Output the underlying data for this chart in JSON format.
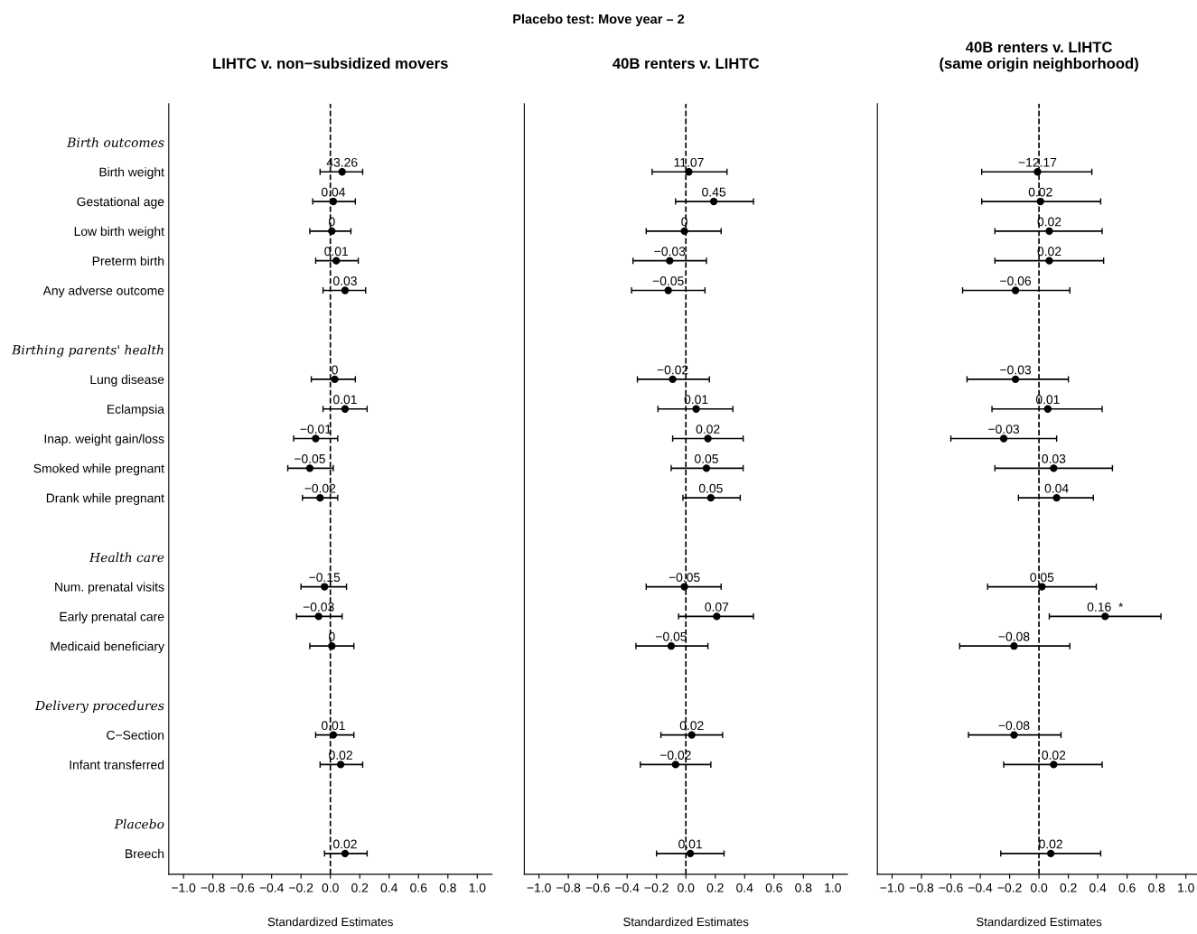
{
  "chart_data": [
    {
      "type": "scatter",
      "orientation": "horizontal",
      "title": "LIHTC v. non−subsidized movers",
      "xlabel": "Standardized Estimates",
      "categories": [
        "Birth outcomes",
        "Birth weight",
        "Gestational age",
        "Low birth weight",
        "Preterm birth",
        "Any adverse outcome",
        null,
        "Birthing parents' health",
        "Lung disease",
        "Eclampsia",
        "Inap. weight gain/loss",
        "Smoked while pregnant",
        "Drank while pregnant",
        null,
        "Health care",
        "Num. prenatal visits",
        "Early prenatal care",
        "Medicaid beneficiary",
        null,
        "Delivery procedures",
        "C−Section",
        "Infant transferred",
        null,
        "Placebo",
        "Breech"
      ],
      "series": [
        {
          "color": "#000000",
          "values": [
            null,
            0.08,
            0.02,
            0.01,
            0.04,
            0.1,
            null,
            null,
            0.03,
            0.1,
            -0.1,
            -0.14,
            -0.07,
            null,
            null,
            -0.04,
            -0.08,
            0.01,
            null,
            null,
            0.02,
            0.07,
            null,
            null,
            0.1
          ],
          "errors": [
            null,
            [
              -0.07,
              0.22
            ],
            [
              -0.12,
              0.17
            ],
            [
              -0.14,
              0.14
            ],
            [
              -0.1,
              0.19
            ],
            [
              -0.05,
              0.24
            ],
            null,
            null,
            [
              -0.13,
              0.17
            ],
            [
              -0.05,
              0.25
            ],
            [
              -0.25,
              0.05
            ],
            [
              -0.29,
              0.02
            ],
            [
              -0.19,
              0.05
            ],
            null,
            null,
            [
              -0.2,
              0.11
            ],
            [
              -0.23,
              0.08
            ],
            [
              -0.14,
              0.16
            ],
            null,
            null,
            [
              -0.1,
              0.16
            ],
            [
              -0.07,
              0.22
            ],
            null,
            null,
            [
              -0.04,
              0.25
            ]
          ]
        }
      ],
      "annotations": [
        "Placebo test: Move year – 2",
        {
          "text": "43.26",
          "x": 0.08,
          "y": "Birth weight"
        },
        {
          "text": "0.04",
          "x": 0.02,
          "y": "Gestational age"
        },
        {
          "text": "0",
          "x": 0.01,
          "y": "Low birth weight"
        },
        {
          "text": "0.01",
          "x": 0.04,
          "y": "Preterm birth"
        },
        {
          "text": "0.03",
          "x": 0.1,
          "y": "Any adverse outcome"
        },
        {
          "text": "0",
          "x": 0.03,
          "y": "Lung disease"
        },
        {
          "text": "0.01",
          "x": 0.1,
          "y": "Eclampsia"
        },
        {
          "text": "−0.01",
          "x": -0.1,
          "y": "Inap. weight gain/loss"
        },
        {
          "text": "−0.05",
          "x": -0.14,
          "y": "Smoked while pregnant"
        },
        {
          "text": "−0.02",
          "x": -0.07,
          "y": "Drank while pregnant"
        },
        {
          "text": "−0.15",
          "x": -0.04,
          "y": "Num. prenatal visits"
        },
        {
          "text": "−0.03",
          "x": -0.08,
          "y": "Early prenatal care"
        },
        {
          "text": "0",
          "x": 0.01,
          "y": "Medicaid beneficiary"
        },
        {
          "text": "0.01",
          "x": 0.02,
          "y": "C−Section"
        },
        {
          "text": "0.02",
          "x": 0.07,
          "y": "Infant transferred"
        },
        {
          "text": "0.02",
          "x": 0.1,
          "y": "Breech"
        }
      ],
      "xlim": [
        -1.1,
        1.1
      ],
      "xticks": [
        {
          "value": -1.0,
          "label": "−1.0"
        },
        {
          "value": -0.8,
          "label": "−0.8"
        },
        {
          "value": -0.6,
          "label": "−0.6"
        },
        {
          "value": -0.4,
          "label": "−0.4"
        },
        {
          "value": -0.2,
          "label": "−0.2"
        },
        {
          "value": 0.0,
          "label": "0.0"
        },
        {
          "value": 0.2,
          "label": "0.2"
        },
        {
          "value": 0.4,
          "label": "0.4"
        },
        {
          "value": 0.6,
          "label": "0.6"
        },
        {
          "value": 0.8,
          "label": "0.8"
        },
        {
          "value": 1.0,
          "label": "1.0"
        }
      ],
      "ref_lines": [
        {
          "axis": "x",
          "value": 0,
          "line_style": "dashed",
          "color": "#000000"
        }
      ],
      "marker": "circle",
      "grid": false
    },
    {
      "type": "scatter",
      "orientation": "horizontal",
      "title": "40B renters v. LIHTC",
      "xlabel": "Standardized Estimates",
      "tick_labels": "x",
      "categories": [
        "Birth outcomes",
        "Birth weight",
        "Gestational age",
        "Low birth weight",
        "Preterm birth",
        "Any adverse outcome",
        null,
        "Birthing parents' health",
        "Lung disease",
        "Eclampsia",
        "Inap. weight gain/loss",
        "Smoked while pregnant",
        "Drank while pregnant",
        null,
        "Health care",
        "Num. prenatal visits",
        "Early prenatal care",
        "Medicaid beneficiary",
        null,
        "Delivery procedures",
        "C−Section",
        "Infant transferred",
        null,
        "Placebo",
        "Breech"
      ],
      "series": [
        {
          "color": "#000000",
          "values": [
            null,
            0.02,
            0.19,
            -0.01,
            -0.11,
            -0.12,
            null,
            null,
            -0.09,
            0.07,
            0.15,
            0.14,
            0.17,
            null,
            null,
            -0.01,
            0.21,
            -0.1,
            null,
            null,
            0.04,
            -0.07,
            null,
            null,
            0.03
          ],
          "errors": [
            null,
            [
              -0.23,
              0.28
            ],
            [
              -0.07,
              0.46
            ],
            [
              -0.27,
              0.24
            ],
            [
              -0.36,
              0.14
            ],
            [
              -0.37,
              0.13
            ],
            null,
            null,
            [
              -0.33,
              0.16
            ],
            [
              -0.19,
              0.32
            ],
            [
              -0.09,
              0.39
            ],
            [
              -0.1,
              0.39
            ],
            [
              -0.02,
              0.37
            ],
            null,
            null,
            [
              -0.27,
              0.24
            ],
            [
              -0.05,
              0.46
            ],
            [
              -0.34,
              0.15
            ],
            null,
            null,
            [
              -0.17,
              0.25
            ],
            [
              -0.31,
              0.17
            ],
            null,
            null,
            [
              -0.2,
              0.26
            ]
          ]
        }
      ],
      "annotations": [
        {
          "text": "11.07",
          "x": 0.02,
          "y": "Birth weight"
        },
        {
          "text": "0.45",
          "x": 0.19,
          "y": "Gestational age"
        },
        {
          "text": "0",
          "x": -0.01,
          "y": "Low birth weight"
        },
        {
          "text": "−0.03",
          "x": -0.11,
          "y": "Preterm birth"
        },
        {
          "text": "−0.05",
          "x": -0.12,
          "y": "Any adverse outcome"
        },
        {
          "text": "−0.02",
          "x": -0.09,
          "y": "Lung disease"
        },
        {
          "text": "0.01",
          "x": 0.07,
          "y": "Eclampsia"
        },
        {
          "text": "0.02",
          "x": 0.15,
          "y": "Inap. weight gain/loss"
        },
        {
          "text": "0.05",
          "x": 0.14,
          "y": "Smoked while pregnant"
        },
        {
          "text": "0.05",
          "x": 0.17,
          "y": "Drank while pregnant"
        },
        {
          "text": "−0.05",
          "x": -0.01,
          "y": "Num. prenatal visits"
        },
        {
          "text": "0.07",
          "x": 0.21,
          "y": "Early prenatal care"
        },
        {
          "text": "−0.05",
          "x": -0.1,
          "y": "Medicaid beneficiary"
        },
        {
          "text": "0.02",
          "x": 0.04,
          "y": "C−Section"
        },
        {
          "text": "−0.02",
          "x": -0.07,
          "y": "Infant transferred"
        },
        {
          "text": "0.01",
          "x": 0.03,
          "y": "Breech"
        }
      ],
      "xlim": [
        -1.1,
        1.1
      ],
      "xticks": [
        {
          "value": -1.0,
          "label": "−1.0"
        },
        {
          "value": -0.8,
          "label": "−0.8"
        },
        {
          "value": -0.6,
          "label": "−0.6"
        },
        {
          "value": -0.4,
          "label": "−0.4"
        },
        {
          "value": -0.2,
          "label": "−0.2"
        },
        {
          "value": 0.0,
          "label": "0.0"
        },
        {
          "value": 0.2,
          "label": "0.2"
        },
        {
          "value": 0.4,
          "label": "0.4"
        },
        {
          "value": 0.6,
          "label": "0.6"
        },
        {
          "value": 0.8,
          "label": "0.8"
        },
        {
          "value": 1.0,
          "label": "1.0"
        }
      ],
      "ref_lines": [
        {
          "axis": "x",
          "value": 0,
          "line_style": "dashed",
          "color": "#000000"
        }
      ],
      "marker": "circle",
      "grid": false
    },
    {
      "type": "scatter",
      "orientation": "horizontal",
      "title": "40B renters v. LIHTC\n(same origin neighborhood)",
      "xlabel": "Standardized Estimates",
      "tick_labels": "x",
      "categories": [
        "Birth outcomes",
        "Birth weight",
        "Gestational age",
        "Low birth weight",
        "Preterm birth",
        "Any adverse outcome",
        null,
        "Birthing parents' health",
        "Lung disease",
        "Eclampsia",
        "Inap. weight gain/loss",
        "Smoked while pregnant",
        "Drank while pregnant",
        null,
        "Health care",
        "Num. prenatal visits",
        "Early prenatal care",
        "Medicaid beneficiary",
        null,
        "Delivery procedures",
        "C−Section",
        "Infant transferred",
        null,
        "Placebo",
        "Breech"
      ],
      "series": [
        {
          "color": "#000000",
          "values": [
            null,
            -0.01,
            0.01,
            0.07,
            0.07,
            -0.16,
            null,
            null,
            -0.16,
            0.06,
            -0.24,
            0.1,
            0.12,
            null,
            null,
            0.02,
            0.45,
            -0.17,
            null,
            null,
            -0.17,
            0.1,
            null,
            null,
            0.08
          ],
          "errors": [
            null,
            [
              -0.39,
              0.36
            ],
            [
              -0.39,
              0.42
            ],
            [
              -0.3,
              0.43
            ],
            [
              -0.3,
              0.44
            ],
            [
              -0.52,
              0.21
            ],
            null,
            null,
            [
              -0.49,
              0.2
            ],
            [
              -0.32,
              0.43
            ],
            [
              -0.6,
              0.12
            ],
            [
              -0.3,
              0.5
            ],
            [
              -0.14,
              0.37
            ],
            null,
            null,
            [
              -0.35,
              0.39
            ],
            [
              0.07,
              0.83
            ],
            [
              -0.54,
              0.21
            ],
            null,
            null,
            [
              -0.48,
              0.15
            ],
            [
              -0.24,
              0.43
            ],
            null,
            null,
            [
              -0.26,
              0.42
            ]
          ]
        }
      ],
      "annotations": [
        {
          "text": "−12.17",
          "x": -0.01,
          "y": "Birth weight"
        },
        {
          "text": "0.02",
          "x": 0.01,
          "y": "Gestational age"
        },
        {
          "text": "0.02",
          "x": 0.07,
          "y": "Low birth weight"
        },
        {
          "text": "0.02",
          "x": 0.07,
          "y": "Preterm birth"
        },
        {
          "text": "−0.06",
          "x": -0.16,
          "y": "Any adverse outcome"
        },
        {
          "text": "−0.03",
          "x": -0.16,
          "y": "Lung disease"
        },
        {
          "text": "0.01",
          "x": 0.06,
          "y": "Eclampsia"
        },
        {
          "text": "−0.03",
          "x": -0.24,
          "y": "Inap. weight gain/loss"
        },
        {
          "text": "0.03",
          "x": 0.1,
          "y": "Smoked while pregnant"
        },
        {
          "text": "0.04",
          "x": 0.12,
          "y": "Drank while pregnant"
        },
        {
          "text": "0.05",
          "x": 0.02,
          "y": "Num. prenatal visits"
        },
        {
          "text": "0.16  *",
          "x": 0.45,
          "y": "Early prenatal care"
        },
        {
          "text": "−0.08",
          "x": -0.17,
          "y": "Medicaid beneficiary"
        },
        {
          "text": "−0.08",
          "x": -0.17,
          "y": "C−Section"
        },
        {
          "text": "0.02",
          "x": 0.1,
          "y": "Infant transferred"
        },
        {
          "text": "0.02",
          "x": 0.08,
          "y": "Breech"
        }
      ],
      "xlim": [
        -1.1,
        1.1
      ],
      "xticks": [
        {
          "value": -1.0,
          "label": "−1.0"
        },
        {
          "value": -0.8,
          "label": "−0.8"
        },
        {
          "value": -0.6,
          "label": "−0.6"
        },
        {
          "value": -0.4,
          "label": "−0.4"
        },
        {
          "value": -0.2,
          "label": "−0.2"
        },
        {
          "value": 0.0,
          "label": "0.0"
        },
        {
          "value": 0.2,
          "label": "0.2"
        },
        {
          "value": 0.4,
          "label": "0.4"
        },
        {
          "value": 0.6,
          "label": "0.6"
        },
        {
          "value": 0.8,
          "label": "0.8"
        },
        {
          "value": 1.0,
          "label": "1.0"
        }
      ],
      "ref_lines": [
        {
          "axis": "x",
          "value": 0,
          "line_style": "dashed",
          "color": "#000000"
        }
      ],
      "marker": "circle",
      "grid": false
    }
  ]
}
